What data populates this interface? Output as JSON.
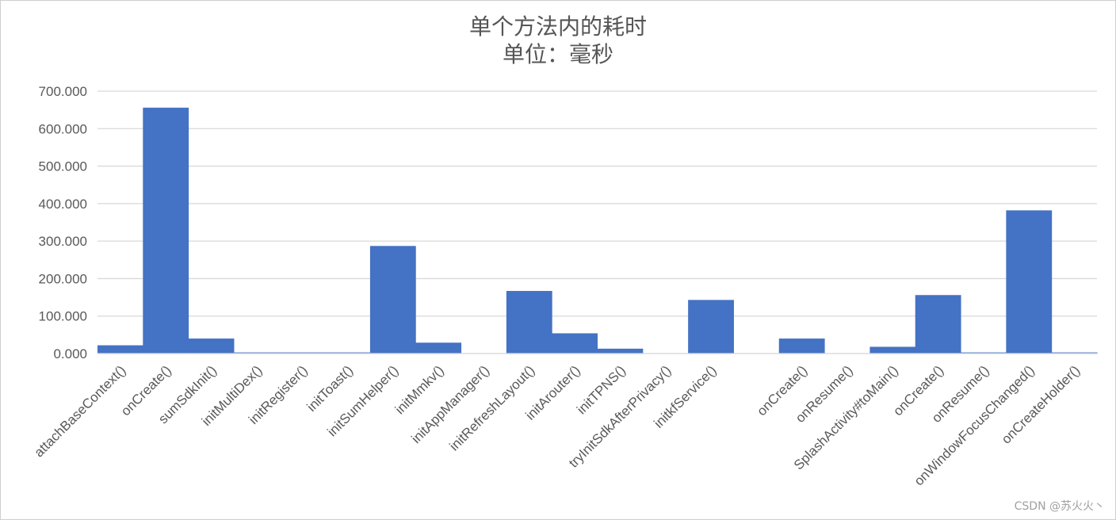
{
  "chart_data": {
    "type": "bar",
    "title": "单个方法内的耗时",
    "subtitle": "单位：毫秒",
    "ylim": [
      0,
      700
    ],
    "y_ticks": [
      "0.000",
      "100.000",
      "200.000",
      "300.000",
      "400.000",
      "500.000",
      "600.000",
      "700.000"
    ],
    "grid": true,
    "bar_color": "#4472C4",
    "categories": [
      "attachBaseContext()",
      "onCreate()",
      "sumSdkInit()",
      "initMultiDex()",
      "initRegister()",
      "initToast()",
      "initSumHelper()",
      "initMmkv()",
      "initAppManager()",
      "initRefreshLayout()",
      "initArouter()",
      "initTPNS()",
      "tryInitSdkAfterPrivacy()",
      "initkfService()",
      "",
      "onCreate()",
      "onResume()",
      "SplashActivity#toMain()",
      "onCreate()",
      "onResume()",
      "onWindowFocusChanged()",
      "onCreateHolder()"
    ],
    "values": [
      22,
      656,
      40,
      3,
      3,
      3,
      287,
      29,
      0,
      167,
      54,
      13,
      0,
      143,
      0,
      40,
      0,
      18,
      156,
      3,
      382,
      3
    ]
  },
  "watermark": "CSDN @苏火火丶"
}
